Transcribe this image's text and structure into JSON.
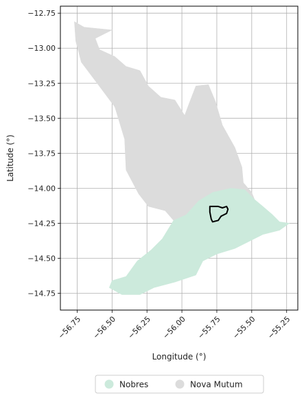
{
  "chart_data": {
    "type": "map",
    "xlabel": "Longitude (°)",
    "ylabel": "Latitude (°)",
    "xlim": [
      -56.87,
      -55.17
    ],
    "ylim": [
      -14.87,
      -12.7
    ],
    "xticks": [
      -56.75,
      -56.5,
      -56.25,
      -56.0,
      -55.75,
      -55.5,
      -55.25
    ],
    "xtick_labels": [
      "−56.75",
      "−56.50",
      "−56.25",
      "−56.00",
      "−55.75",
      "−55.50",
      "−55.25"
    ],
    "yticks": [
      -12.75,
      -13.0,
      -13.25,
      -13.5,
      -13.75,
      -14.0,
      -14.25,
      -14.5,
      -14.75
    ],
    "ytick_labels": [
      "−12.75",
      "−13.00",
      "−13.25",
      "−13.50",
      "−13.75",
      "−14.00",
      "−14.25",
      "−14.50",
      "−14.75"
    ],
    "grid": true,
    "legend_position": "bottom-center",
    "regions": [
      {
        "name": "Nova Mutum",
        "color": "#dcdcdc",
        "outline": [
          [
            -56.77,
            -12.81
          ],
          [
            -56.7,
            -12.85
          ],
          [
            -56.6,
            -12.86
          ],
          [
            -56.5,
            -12.87
          ],
          [
            -56.62,
            -12.93
          ],
          [
            -56.59,
            -13.01
          ],
          [
            -56.48,
            -13.06
          ],
          [
            -56.4,
            -13.13
          ],
          [
            -56.3,
            -13.16
          ],
          [
            -56.24,
            -13.27
          ],
          [
            -56.15,
            -13.35
          ],
          [
            -56.05,
            -13.37
          ],
          [
            -55.98,
            -13.48
          ],
          [
            -55.95,
            -13.4
          ],
          [
            -55.9,
            -13.27
          ],
          [
            -55.81,
            -13.26
          ],
          [
            -55.76,
            -13.38
          ],
          [
            -55.71,
            -13.55
          ],
          [
            -55.62,
            -13.71
          ],
          [
            -55.57,
            -13.85
          ],
          [
            -55.56,
            -13.96
          ],
          [
            -55.5,
            -14.03
          ],
          [
            -55.48,
            -14.08
          ],
          [
            -55.55,
            -14.01
          ],
          [
            -55.65,
            -14.0
          ],
          [
            -55.78,
            -14.03
          ],
          [
            -55.88,
            -14.09
          ],
          [
            -55.97,
            -14.19
          ],
          [
            -56.06,
            -14.23
          ],
          [
            -56.12,
            -14.16
          ],
          [
            -56.24,
            -14.13
          ],
          [
            -56.31,
            -14.04
          ],
          [
            -56.4,
            -13.87
          ],
          [
            -56.41,
            -13.65
          ],
          [
            -56.48,
            -13.42
          ],
          [
            -56.6,
            -13.26
          ],
          [
            -56.72,
            -13.1
          ],
          [
            -56.76,
            -12.95
          ]
        ]
      },
      {
        "name": "Nobres",
        "color": "#cceadc",
        "outline": [
          [
            -56.06,
            -14.23
          ],
          [
            -55.97,
            -14.19
          ],
          [
            -55.88,
            -14.09
          ],
          [
            -55.78,
            -14.03
          ],
          [
            -55.65,
            -14.0
          ],
          [
            -55.55,
            -14.01
          ],
          [
            -55.48,
            -14.08
          ],
          [
            -55.42,
            -14.13
          ],
          [
            -55.35,
            -14.19
          ],
          [
            -55.3,
            -14.24
          ],
          [
            -55.23,
            -14.25
          ],
          [
            -55.3,
            -14.3
          ],
          [
            -55.42,
            -14.33
          ],
          [
            -55.52,
            -14.38
          ],
          [
            -55.62,
            -14.43
          ],
          [
            -55.75,
            -14.47
          ],
          [
            -55.85,
            -14.52
          ],
          [
            -55.9,
            -14.62
          ],
          [
            -56.05,
            -14.67
          ],
          [
            -56.2,
            -14.71
          ],
          [
            -56.3,
            -14.76
          ],
          [
            -56.43,
            -14.76
          ],
          [
            -56.52,
            -14.71
          ],
          [
            -56.5,
            -14.66
          ],
          [
            -56.4,
            -14.63
          ],
          [
            -56.32,
            -14.52
          ],
          [
            -56.22,
            -14.44
          ],
          [
            -56.14,
            -14.36
          ]
        ]
      }
    ],
    "highlight": {
      "color": "#000000",
      "outline": [
        [
          -55.8,
          -14.13
        ],
        [
          -55.74,
          -14.13
        ],
        [
          -55.71,
          -14.14
        ],
        [
          -55.68,
          -14.13
        ],
        [
          -55.67,
          -14.15
        ],
        [
          -55.68,
          -14.18
        ],
        [
          -55.72,
          -14.2
        ],
        [
          -55.74,
          -14.23
        ],
        [
          -55.78,
          -14.24
        ],
        [
          -55.79,
          -14.22
        ],
        [
          -55.8,
          -14.17
        ]
      ]
    },
    "legend": [
      {
        "label": "Nobres",
        "color": "#cceadc"
      },
      {
        "label": "Nova Mutum",
        "color": "#dcdcdc"
      }
    ]
  }
}
